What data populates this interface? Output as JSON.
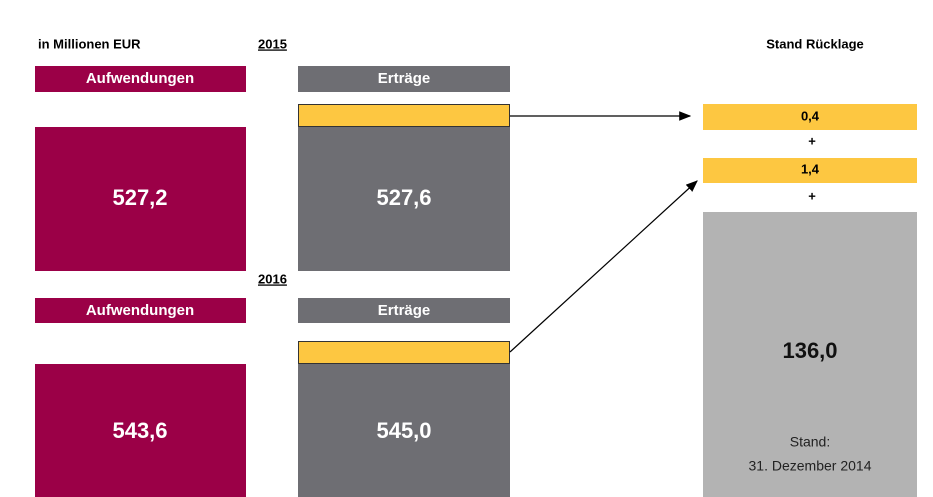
{
  "unit_label": "in Millionen EUR",
  "years": [
    {
      "year": "2015",
      "expenses_label": "Aufwendungen",
      "income_label": "Erträge",
      "expenses": "527,2",
      "income": "527,6"
    },
    {
      "year": "2016",
      "expenses_label": "Aufwendungen",
      "income_label": "Erträge",
      "expenses": "543,6",
      "income": "545,0"
    }
  ],
  "reserve": {
    "title": "Stand Rücklage",
    "additions": [
      "0,4",
      "1,4"
    ],
    "plus": [
      "+",
      "+"
    ],
    "total": "136,0",
    "note_lines": [
      "Stand:",
      "31. Dezember 2014"
    ]
  }
}
